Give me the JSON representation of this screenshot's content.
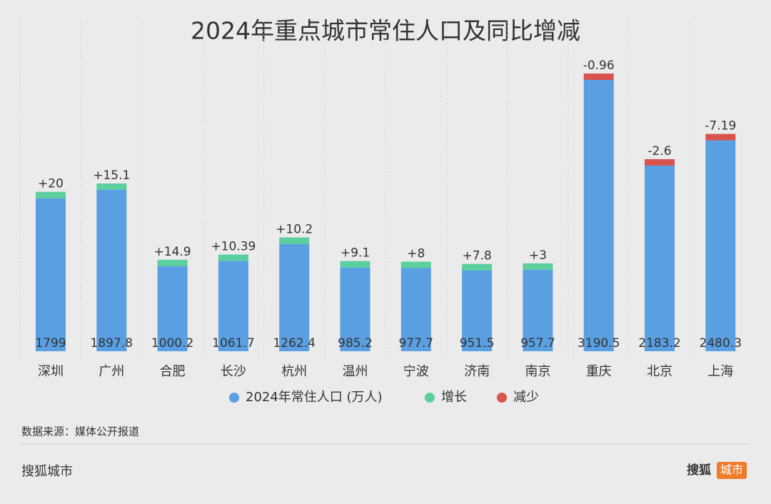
{
  "chart_data": {
    "type": "stacked_bar",
    "title": "2024年重点城市常住人口及同比增减",
    "categories": [
      "深圳",
      "广州",
      "合肥",
      "长沙",
      "杭州",
      "温州",
      "宁波",
      "济南",
      "南京",
      "重庆",
      "北京",
      "上海"
    ],
    "series": [
      {
        "name": "2024年常住人口 (万人)",
        "color": "#5a9fe2",
        "values": [
          1799,
          1897.8,
          1000.2,
          1061.7,
          1262.4,
          985.2,
          977.7,
          951.5,
          957.7,
          3190.5,
          2183.2,
          2480.3
        ]
      },
      {
        "name": "增长",
        "color": "#5ccf9e",
        "values": [
          20,
          15.1,
          14.9,
          10.39,
          10.2,
          9.1,
          8,
          7.8,
          3,
          null,
          null,
          null
        ],
        "value_labels": [
          "+20",
          "+15.1",
          "+14.9",
          "+10.39",
          "+10.2",
          "+9.1",
          "+8",
          "+7.8",
          "+3",
          null,
          null,
          null
        ]
      },
      {
        "name": "减少",
        "color": "#d9534f",
        "values": [
          null,
          null,
          null,
          null,
          null,
          null,
          null,
          null,
          null,
          -0.96,
          -2.6,
          -7.19
        ]
      }
    ],
    "legend": "bottom"
  },
  "source": "数据来源：媒体公开报道",
  "footer": {
    "left": "搜狐城市",
    "right": "搜狐",
    "badge": "城市"
  }
}
